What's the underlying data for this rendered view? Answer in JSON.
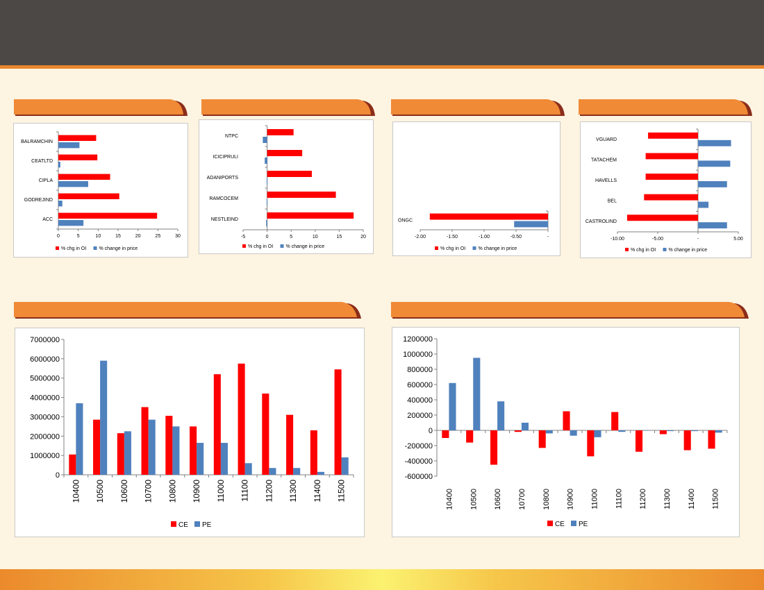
{
  "colors": {
    "oi": "#ff0000",
    "price": "#4f81bd",
    "ce": "#ff0000",
    "pe": "#4f81bd",
    "tab": "#f08a36",
    "tab_shadow": "#8b2d1a"
  },
  "chart_data": [
    {
      "type": "bar",
      "orientation": "horizontal",
      "categories": [
        "BALRAMCHIN",
        "CEATLTD",
        "CIPLA",
        "GODREJIND",
        "ACC"
      ],
      "series": [
        {
          "name": "% chg in OI",
          "values": [
            9.5,
            9.8,
            13,
            15.3,
            24.8
          ]
        },
        {
          "name": "% change in price",
          "values": [
            5.3,
            0.5,
            7.5,
            1,
            6.3
          ]
        }
      ],
      "xlim": [
        0,
        30
      ],
      "xticks": [
        "0",
        "5",
        "10",
        "15",
        "20",
        "25",
        "30"
      ],
      "legend": "bottom"
    },
    {
      "type": "bar",
      "orientation": "horizontal",
      "categories": [
        "NTPC",
        "ICICIPRULI",
        "ADANIPORTS",
        "RAMCOCEM",
        "NESTLEIND"
      ],
      "series": [
        {
          "name": "% chg in OI",
          "values": [
            5.5,
            7.3,
            9.3,
            14.3,
            18
          ]
        },
        {
          "name": "% change in price",
          "values": [
            -0.9,
            -0.5,
            -0.1,
            -0.1,
            -0.2
          ]
        }
      ],
      "xlim": [
        -5,
        20
      ],
      "xticks": [
        "-5",
        "0",
        "5",
        "10",
        "15",
        "20"
      ],
      "legend": "bottom"
    },
    {
      "type": "bar",
      "orientation": "horizontal",
      "categories": [
        "ONGC"
      ],
      "series": [
        {
          "name": "% chg in OI",
          "values": [
            -1.85
          ]
        },
        {
          "name": "% change in price",
          "values": [
            -0.53
          ]
        }
      ],
      "xlim": [
        -2,
        0
      ],
      "xticks": [
        "-2.00",
        "-1.50",
        "-1.00",
        "-0.50",
        "-"
      ],
      "legend": "bottom"
    },
    {
      "type": "bar",
      "orientation": "horizontal",
      "categories": [
        "VGUARD",
        "TATACHEM",
        "HAVELLS",
        "BEL",
        "CASTROLIND"
      ],
      "series": [
        {
          "name": "% chg in OI",
          "values": [
            -6.2,
            -6.5,
            -6.5,
            -6.7,
            -8.8
          ]
        },
        {
          "name": "% change in price",
          "values": [
            4.1,
            4,
            3.6,
            1.3,
            3.6
          ]
        }
      ],
      "xlim": [
        -10,
        5
      ],
      "xticks": [
        "-10.00",
        "-5.00",
        "-",
        "5.00"
      ],
      "legend": "bottom"
    },
    {
      "type": "bar",
      "categories": [
        "10400",
        "10500",
        "10600",
        "10700",
        "10800",
        "10900",
        "11000",
        "11100",
        "11200",
        "11300",
        "11400",
        "11500"
      ],
      "series": [
        {
          "name": "CE",
          "values": [
            1050000,
            2850000,
            2150000,
            3500000,
            3050000,
            2500000,
            5200000,
            5750000,
            4200000,
            3100000,
            2300000,
            5450000
          ]
        },
        {
          "name": "PE",
          "values": [
            3700000,
            5900000,
            2250000,
            2850000,
            2500000,
            1650000,
            1650000,
            600000,
            350000,
            350000,
            150000,
            900000
          ]
        }
      ],
      "ylim": [
        0,
        7000000
      ],
      "yticks": [
        "0",
        "1000000",
        "2000000",
        "3000000",
        "4000000",
        "5000000",
        "6000000",
        "7000000"
      ],
      "legend": "bottom"
    },
    {
      "type": "bar",
      "categories": [
        "10400",
        "10500",
        "10600",
        "10700",
        "10800",
        "10900",
        "11000",
        "11100",
        "11200",
        "11300",
        "11400",
        "11500"
      ],
      "series": [
        {
          "name": "CE",
          "values": [
            -100000,
            -160000,
            -450000,
            -20000,
            -230000,
            250000,
            -340000,
            240000,
            -280000,
            -50000,
            -260000,
            -240000
          ]
        },
        {
          "name": "PE",
          "values": [
            620000,
            950000,
            380000,
            100000,
            -40000,
            -70000,
            -90000,
            -20000,
            0,
            -10000,
            -10000,
            -30000
          ]
        }
      ],
      "ylim": [
        -600000,
        1200000
      ],
      "yticks": [
        "-600000",
        "-400000",
        "-200000",
        "0",
        "200000",
        "400000",
        "600000",
        "800000",
        "1000000",
        "1200000"
      ],
      "legend": "bottom"
    }
  ]
}
